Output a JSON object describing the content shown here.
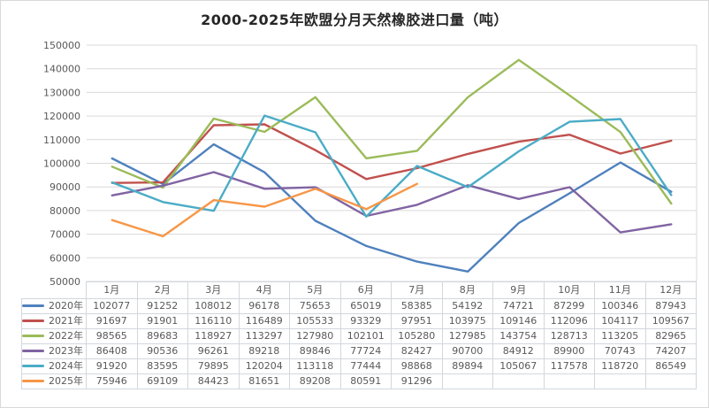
{
  "title": "2000-2025年欧盟分月天然橡胶进口量（吨）",
  "chart_data": {
    "type": "line",
    "title": "2000-2025年欧盟分月天然橡胶进口量（吨）",
    "categories": [
      "1月",
      "2月",
      "3月",
      "4月",
      "5月",
      "6月",
      "7月",
      "8月",
      "9月",
      "10月",
      "11月",
      "12月"
    ],
    "series": [
      {
        "name": "2020年",
        "color": "#4F81BD",
        "values": [
          102077,
          91252,
          108012,
          96178,
          75653,
          65019,
          58385,
          54192,
          74721,
          87299,
          100346,
          87943
        ]
      },
      {
        "name": "2021年",
        "color": "#C0504D",
        "values": [
          91697,
          91901,
          116110,
          116489,
          105533,
          93329,
          97951,
          103975,
          109146,
          112096,
          104117,
          109567
        ]
      },
      {
        "name": "2022年",
        "color": "#9BBB59",
        "values": [
          98565,
          89683,
          118927,
          113297,
          127980,
          102101,
          105280,
          127985,
          143754,
          128713,
          113205,
          82965
        ]
      },
      {
        "name": "2023年",
        "color": "#8064A2",
        "values": [
          86408,
          90536,
          96261,
          89218,
          89846,
          77724,
          82427,
          90700,
          84912,
          89900,
          70743,
          74207
        ]
      },
      {
        "name": "2024年",
        "color": "#4BACC6",
        "values": [
          91920,
          83595,
          79895,
          120204,
          113118,
          77444,
          98868,
          89894,
          105067,
          117578,
          118720,
          86549
        ]
      },
      {
        "name": "2025年",
        "color": "#F79646",
        "values": [
          75946,
          69109,
          84423,
          81651,
          89208,
          80591,
          91296,
          null,
          null,
          null,
          null,
          null
        ]
      }
    ],
    "ylim": [
      50000,
      150000
    ],
    "ytick_step": 10000,
    "yticks": [
      "50000",
      "60000",
      "70000",
      "80000",
      "90000",
      "100000",
      "110000",
      "120000",
      "130000",
      "140000",
      "150000"
    ],
    "grid": true,
    "legend_position": "data-table-left"
  },
  "style": {
    "grid_color": "#D9D9D9",
    "plot_right_border_color": "#D9D9D9",
    "table_border_color": "#D2D7DE",
    "axis_text_color": "#595959",
    "title_color": "#262626",
    "background": "#FFFFFF"
  }
}
